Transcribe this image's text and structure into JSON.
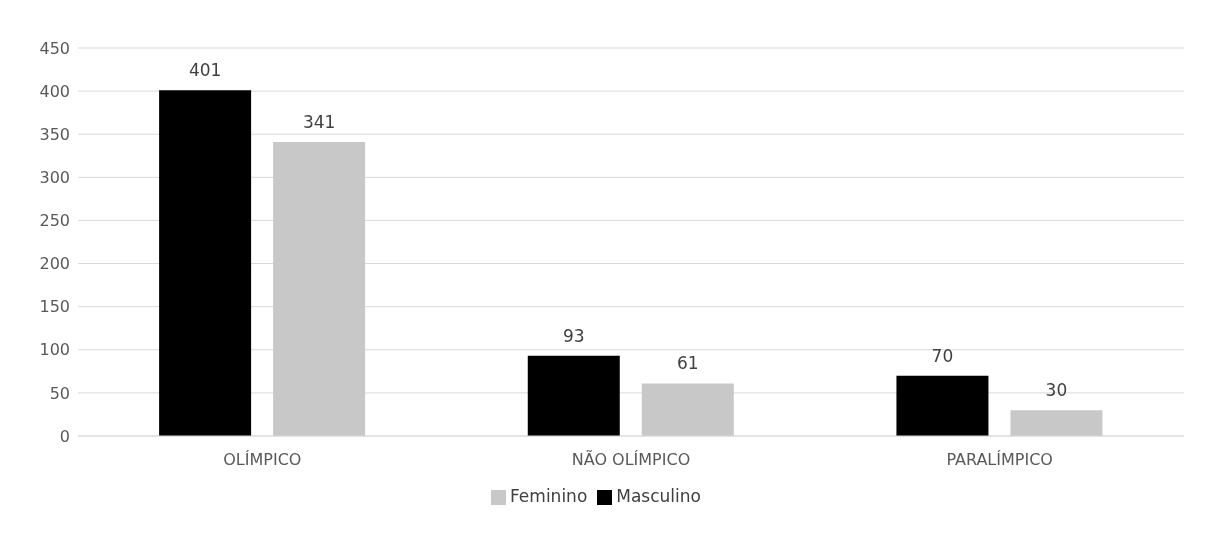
{
  "chart_data": {
    "type": "bar",
    "categories": [
      "OLÍMPICO",
      "NÃO OLÍMPICO",
      "PARALÍMPICO"
    ],
    "series": [
      {
        "name": "Masculino",
        "color": "#000000",
        "values": [
          401,
          93,
          70
        ]
      },
      {
        "name": "Feminino",
        "color": "#c8c8c8",
        "values": [
          341,
          61,
          30
        ]
      }
    ],
    "ylim": [
      0,
      450
    ],
    "yticks": [
      0,
      50,
      100,
      150,
      200,
      250,
      300,
      350,
      400,
      450
    ],
    "grid": "y",
    "legend": "bottom",
    "data_labels": true
  }
}
